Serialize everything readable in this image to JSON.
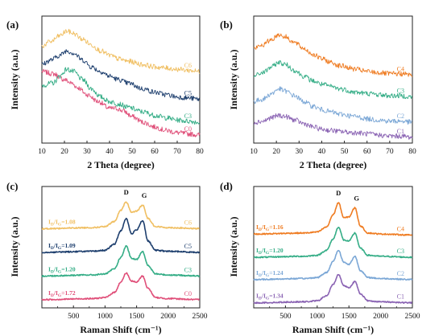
{
  "figure": {
    "colors": {
      "C0": "#e0507a",
      "C1": "#8a63b3",
      "C2": "#7ba7d6",
      "C3": "#34ad86",
      "C4": "#ef7c22",
      "C5": "#1e3f6e",
      "C6": "#f0bf62"
    }
  },
  "chart_data": [
    {
      "panel": "(a)",
      "type": "line",
      "xlabel": "2 Theta (degree)",
      "ylabel": "Intensity (a.u.)",
      "xlim": [
        10,
        80
      ],
      "xticks": [
        "10",
        "20",
        "30",
        "40",
        "50",
        "60",
        "70",
        "80"
      ],
      "series": [
        {
          "name": "C0",
          "x": [
            10,
            15,
            20,
            23,
            26,
            30,
            35,
            40,
            43,
            46,
            50,
            55,
            60,
            65,
            70,
            75,
            80
          ],
          "y": [
            0.62,
            0.6,
            0.55,
            0.52,
            0.48,
            0.42,
            0.36,
            0.3,
            0.3,
            0.28,
            0.23,
            0.18,
            0.14,
            0.11,
            0.09,
            0.08,
            0.07
          ]
        },
        {
          "name": "C3",
          "x": [
            10,
            15,
            18,
            21,
            24,
            28,
            32,
            36,
            40,
            44,
            48,
            55,
            60,
            65,
            70,
            75,
            80
          ],
          "y": [
            0.5,
            0.52,
            0.58,
            0.64,
            0.62,
            0.55,
            0.47,
            0.4,
            0.36,
            0.34,
            0.31,
            0.27,
            0.24,
            0.22,
            0.2,
            0.19,
            0.18
          ]
        },
        {
          "name": "C5",
          "x": [
            10,
            14,
            18,
            21,
            24,
            28,
            32,
            36,
            40,
            44,
            48,
            55,
            60,
            65,
            70,
            75,
            80
          ],
          "y": [
            0.68,
            0.72,
            0.76,
            0.8,
            0.78,
            0.72,
            0.66,
            0.62,
            0.58,
            0.55,
            0.52,
            0.47,
            0.44,
            0.42,
            0.4,
            0.39,
            0.38
          ]
        },
        {
          "name": "C6",
          "x": [
            10,
            14,
            18,
            21,
            24,
            28,
            32,
            36,
            40,
            44,
            48,
            55,
            60,
            65,
            70,
            75,
            80
          ],
          "y": [
            0.84,
            0.88,
            0.93,
            0.97,
            0.95,
            0.9,
            0.85,
            0.8,
            0.76,
            0.73,
            0.71,
            0.68,
            0.66,
            0.65,
            0.64,
            0.63,
            0.62
          ]
        }
      ]
    },
    {
      "panel": "(b)",
      "type": "line",
      "xlabel": "2 Theta (degree)",
      "ylabel": "Intensity (a.u.)",
      "xlim": [
        10,
        80
      ],
      "xticks": [
        "10",
        "20",
        "30",
        "40",
        "50",
        "60",
        "70",
        "80"
      ],
      "series": [
        {
          "name": "C1",
          "x": [
            10,
            14,
            18,
            21,
            24,
            28,
            32,
            36,
            40,
            44,
            48,
            55,
            60,
            65,
            70,
            75,
            80
          ],
          "y": [
            0.18,
            0.19,
            0.22,
            0.24,
            0.23,
            0.2,
            0.17,
            0.14,
            0.12,
            0.11,
            0.1,
            0.09,
            0.08,
            0.07,
            0.06,
            0.06,
            0.05
          ]
        },
        {
          "name": "C2",
          "x": [
            10,
            14,
            18,
            21,
            24,
            28,
            32,
            36,
            40,
            44,
            48,
            55,
            60,
            65,
            70,
            75,
            80
          ],
          "y": [
            0.36,
            0.38,
            0.43,
            0.47,
            0.45,
            0.41,
            0.36,
            0.32,
            0.29,
            0.27,
            0.25,
            0.23,
            0.21,
            0.2,
            0.19,
            0.19,
            0.18
          ]
        },
        {
          "name": "C3",
          "x": [
            10,
            14,
            18,
            21,
            24,
            28,
            32,
            36,
            40,
            44,
            48,
            55,
            60,
            65,
            70,
            75,
            80
          ],
          "y": [
            0.58,
            0.61,
            0.66,
            0.7,
            0.68,
            0.63,
            0.58,
            0.54,
            0.51,
            0.49,
            0.47,
            0.44,
            0.43,
            0.42,
            0.41,
            0.41,
            0.4
          ]
        },
        {
          "name": "C4",
          "x": [
            10,
            14,
            18,
            21,
            24,
            28,
            32,
            36,
            40,
            44,
            48,
            55,
            60,
            65,
            70,
            75,
            80
          ],
          "y": [
            0.82,
            0.85,
            0.9,
            0.94,
            0.92,
            0.87,
            0.82,
            0.77,
            0.73,
            0.7,
            0.67,
            0.64,
            0.62,
            0.61,
            0.6,
            0.6,
            0.59
          ]
        }
      ]
    },
    {
      "panel": "(c)",
      "type": "line",
      "xlabel": "Raman Shift (cm⁻¹)",
      "ylabel": "Intensity (a.u.)",
      "xlim": [
        0,
        2500
      ],
      "xticks": [
        "500",
        "1000",
        "1500",
        "2000",
        "2500"
      ],
      "peaks": [
        "D",
        "G"
      ],
      "series": [
        {
          "name": "C0",
          "ratio": "1.72",
          "x": [
            0,
            800,
            1000,
            1150,
            1250,
            1335,
            1420,
            1500,
            1595,
            1680,
            1800,
            2000,
            2500
          ],
          "y": [
            0.1,
            0.11,
            0.12,
            0.17,
            0.27,
            0.36,
            0.28,
            0.27,
            0.33,
            0.21,
            0.12,
            0.11,
            0.1
          ]
        },
        {
          "name": "C3",
          "ratio": "1.20",
          "x": [
            0,
            800,
            1000,
            1150,
            1250,
            1335,
            1420,
            1500,
            1595,
            1680,
            1800,
            2000,
            2500
          ],
          "y": [
            0.33,
            0.34,
            0.35,
            0.4,
            0.51,
            0.62,
            0.5,
            0.49,
            0.57,
            0.43,
            0.35,
            0.34,
            0.33
          ]
        },
        {
          "name": "C5",
          "ratio": "1.09",
          "x": [
            0,
            800,
            1000,
            1150,
            1250,
            1335,
            1420,
            1500,
            1595,
            1680,
            1800,
            2000,
            2500
          ],
          "y": [
            0.56,
            0.57,
            0.58,
            0.64,
            0.77,
            0.89,
            0.74,
            0.78,
            0.87,
            0.67,
            0.58,
            0.57,
            0.56
          ]
        },
        {
          "name": "C6",
          "ratio": "1.08",
          "x": [
            0,
            800,
            1000,
            1150,
            1250,
            1335,
            1420,
            1500,
            1595,
            1680,
            1800,
            2000,
            2500
          ],
          "y": [
            0.79,
            0.8,
            0.81,
            0.86,
            0.97,
            1.05,
            0.95,
            0.96,
            1.02,
            0.89,
            0.81,
            0.8,
            0.79
          ]
        }
      ]
    },
    {
      "panel": "(d)",
      "type": "line",
      "xlabel": "Raman Shift (cm⁻¹)",
      "ylabel": "Intensity (a.u.)",
      "xlim": [
        0,
        2500
      ],
      "xticks": [
        "500",
        "1000",
        "1500",
        "2000",
        "2500"
      ],
      "peaks": [
        "D",
        "G"
      ],
      "series": [
        {
          "name": "C1",
          "ratio": "1.34",
          "x": [
            0,
            800,
            1000,
            1150,
            1250,
            1335,
            1420,
            1500,
            1595,
            1680,
            1800,
            2000,
            2500
          ],
          "y": [
            0.05,
            0.06,
            0.07,
            0.12,
            0.23,
            0.33,
            0.22,
            0.2,
            0.26,
            0.14,
            0.07,
            0.06,
            0.05
          ]
        },
        {
          "name": "C2",
          "ratio": "1.24",
          "x": [
            0,
            800,
            1000,
            1150,
            1250,
            1335,
            1420,
            1500,
            1595,
            1680,
            1800,
            2000,
            2500
          ],
          "y": [
            0.28,
            0.29,
            0.3,
            0.35,
            0.46,
            0.57,
            0.45,
            0.43,
            0.51,
            0.37,
            0.3,
            0.29,
            0.28
          ]
        },
        {
          "name": "C3",
          "ratio": "1.20",
          "x": [
            0,
            800,
            1000,
            1150,
            1250,
            1335,
            1420,
            1500,
            1595,
            1680,
            1800,
            2000,
            2500
          ],
          "y": [
            0.5,
            0.51,
            0.52,
            0.57,
            0.68,
            0.8,
            0.67,
            0.66,
            0.74,
            0.59,
            0.52,
            0.51,
            0.5
          ]
        },
        {
          "name": "C4",
          "ratio": "1.16",
          "x": [
            0,
            800,
            1000,
            1150,
            1250,
            1335,
            1420,
            1500,
            1595,
            1680,
            1800,
            2000,
            2500
          ],
          "y": [
            0.73,
            0.74,
            0.75,
            0.8,
            0.92,
            1.04,
            0.89,
            0.9,
            0.99,
            0.81,
            0.74,
            0.73,
            0.72
          ]
        }
      ]
    }
  ]
}
